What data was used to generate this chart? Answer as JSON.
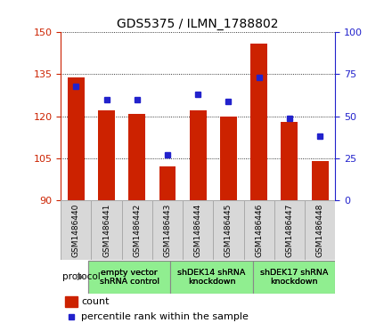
{
  "title": "GDS5375 / ILMN_1788802",
  "samples": [
    "GSM1486440",
    "GSM1486441",
    "GSM1486442",
    "GSM1486443",
    "GSM1486444",
    "GSM1486445",
    "GSM1486446",
    "GSM1486447",
    "GSM1486448"
  ],
  "counts": [
    134,
    122,
    121,
    102,
    122,
    120,
    146,
    118,
    104
  ],
  "percentiles": [
    68,
    60,
    60,
    27,
    63,
    59,
    73,
    49,
    38
  ],
  "ylim_left": [
    90,
    150
  ],
  "ylim_right": [
    0,
    100
  ],
  "yticks_left": [
    90,
    105,
    120,
    135,
    150
  ],
  "yticks_right": [
    0,
    25,
    50,
    75,
    100
  ],
  "bar_color": "#cc2200",
  "dot_color": "#2222cc",
  "groups": [
    {
      "label": "empty vector\nshRNA control",
      "start": 0,
      "end": 3,
      "color": "#90ee90"
    },
    {
      "label": "shDEK14 shRNA\nknockdown",
      "start": 3,
      "end": 6,
      "color": "#90ee90"
    },
    {
      "label": "shDEK17 shRNA\nknockdown",
      "start": 6,
      "end": 9,
      "color": "#90ee90"
    }
  ],
  "protocol_label": "protocol",
  "legend_count_label": "count",
  "legend_pct_label": "percentile rank within the sample",
  "bar_width": 0.55,
  "left_axis_color": "#cc2200",
  "right_axis_color": "#2222cc",
  "tick_label_box_color": "#d8d8d8",
  "tick_label_box_edge": "#aaaaaa",
  "bg_color": "#ffffff"
}
